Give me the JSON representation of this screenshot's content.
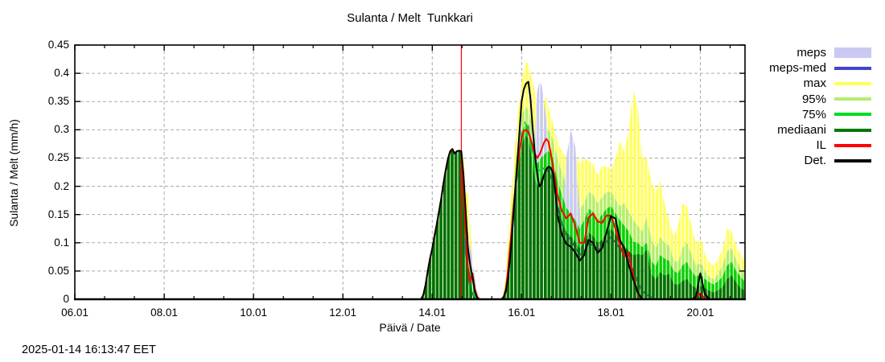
{
  "timestamp": "2025-01-14 16:13:47 EET",
  "chart_data": {
    "type": "area",
    "title": "Sulanta / Melt  Tunkkari",
    "xlabel": "Päivä / Date",
    "ylabel": "Sulanta / Melt (mm/h)",
    "xlim": [
      6,
      21
    ],
    "ylim": [
      0,
      0.45
    ],
    "grid": true,
    "legend_position": "right-outside",
    "now_line": {
      "x": 14.65,
      "color": "#ff0000"
    },
    "xticks": [
      {
        "v": 6,
        "label": "06.01"
      },
      {
        "v": 8,
        "label": "08.01"
      },
      {
        "v": 10,
        "label": "10.01"
      },
      {
        "v": 12,
        "label": "12.01"
      },
      {
        "v": 14,
        "label": "14.01"
      },
      {
        "v": 16,
        "label": "16.01"
      },
      {
        "v": 18,
        "label": "18.01"
      },
      {
        "v": 20,
        "label": "20.01"
      }
    ],
    "yticks": [
      {
        "v": 0,
        "label": "0"
      },
      {
        "v": 0.05,
        "label": "0.05"
      },
      {
        "v": 0.1,
        "label": "0.1"
      },
      {
        "v": 0.15,
        "label": "0.15"
      },
      {
        "v": 0.2,
        "label": "0.2"
      },
      {
        "v": 0.25,
        "label": "0.25"
      },
      {
        "v": 0.3,
        "label": "0.3"
      },
      {
        "v": 0.35,
        "label": "0.35"
      },
      {
        "v": 0.4,
        "label": "0.4"
      },
      {
        "v": 0.45,
        "label": "0.45"
      }
    ],
    "colors": {
      "max": "#ffff60",
      "p95": "#b3ee6e",
      "p75": "#0ad00a",
      "mediaani": "#076e07",
      "meps": "#c9c9f4",
      "meps_med": "#4444cc",
      "il": "#ff0000",
      "det": "#000000",
      "grid": "#a9a9a9",
      "frame": "#000000"
    },
    "legend": [
      {
        "label": "meps",
        "swatch": "fill",
        "color": "#c9c9f4"
      },
      {
        "label": "meps-med",
        "swatch": "line",
        "color": "#4444cc"
      },
      {
        "label": "max",
        "swatch": "line",
        "color": "#ffff55"
      },
      {
        "label": "95%",
        "swatch": "line",
        "color": "#b3ee6e"
      },
      {
        "label": "75%",
        "swatch": "line",
        "color": "#00dd22"
      },
      {
        "label": "mediaani",
        "swatch": "line",
        "color": "#077707"
      },
      {
        "label": "IL",
        "swatch": "line",
        "color": "#ff0000"
      },
      {
        "label": "Det.",
        "swatch": "line",
        "color": "#000000"
      }
    ],
    "series": {
      "x": [
        6,
        13.7,
        13.75,
        13.8,
        13.85,
        13.9,
        13.95,
        14,
        14.05,
        14.1,
        14.15,
        14.2,
        14.25,
        14.3,
        14.35,
        14.4,
        14.45,
        14.5,
        14.55,
        14.6,
        14.65,
        14.7,
        14.75,
        14.8,
        14.85,
        14.9,
        14.95,
        15,
        15.05,
        15.1,
        15.3,
        15.5,
        15.55,
        15.6,
        15.65,
        15.7,
        15.75,
        15.8,
        15.85,
        15.9,
        15.95,
        16,
        16.05,
        16.1,
        16.15,
        16.2,
        16.25,
        16.3,
        16.35,
        16.4,
        16.45,
        16.5,
        16.55,
        16.6,
        16.65,
        16.7,
        16.75,
        16.8,
        16.9,
        17,
        17.1,
        17.2,
        17.3,
        17.4,
        17.5,
        17.6,
        17.7,
        17.8,
        17.9,
        18,
        18.1,
        18.2,
        18.3,
        18.4,
        18.5,
        18.6,
        18.7,
        18.8,
        18.9,
        19,
        19.1,
        19.2,
        19.3,
        19.4,
        19.5,
        19.6,
        19.7,
        19.8,
        19.9,
        19.95,
        20,
        20.05,
        20.1,
        20.2,
        20.3,
        20.4,
        20.5,
        20.6,
        20.7,
        20.8,
        20.9,
        21
      ],
      "max": [
        0,
        0,
        0,
        0.008,
        0.025,
        0.05,
        0.072,
        0.09,
        0.112,
        0.132,
        0.155,
        0.178,
        0.205,
        0.228,
        0.248,
        0.262,
        0.266,
        0.258,
        0.262,
        0.263,
        0.262,
        0.25,
        0.19,
        0.185,
        0.13,
        0.07,
        0.035,
        0.015,
        0.004,
        0,
        0,
        0,
        0,
        0.01,
        0.05,
        0.11,
        0.17,
        0.22,
        0.27,
        0.315,
        0.35,
        0.385,
        0.405,
        0.418,
        0.42,
        0.4,
        0.385,
        0.37,
        0.335,
        0.325,
        0.33,
        0.345,
        0.36,
        0.34,
        0.325,
        0.312,
        0.295,
        0.28,
        0.262,
        0.25,
        0.27,
        0.26,
        0.24,
        0.25,
        0.245,
        0.24,
        0.22,
        0.235,
        0.235,
        0.23,
        0.25,
        0.28,
        0.26,
        0.3,
        0.37,
        0.34,
        0.25,
        0.25,
        0.21,
        0.19,
        0.21,
        0.17,
        0.14,
        0.11,
        0.13,
        0.17,
        0.165,
        0.13,
        0.1,
        0.102,
        0.105,
        0.1,
        0.08,
        0.065,
        0.06,
        0.07,
        0.09,
        0.125,
        0.12,
        0.095,
        0.08,
        0.065
      ],
      "p95": [
        0,
        0,
        0,
        0.008,
        0.025,
        0.05,
        0.072,
        0.09,
        0.112,
        0.132,
        0.155,
        0.178,
        0.205,
        0.228,
        0.248,
        0.262,
        0.266,
        0.258,
        0.262,
        0.263,
        0.262,
        0.235,
        0.17,
        0.12,
        0.075,
        0.045,
        0.02,
        0.008,
        0.002,
        0,
        0,
        0,
        0,
        0.008,
        0.03,
        0.08,
        0.13,
        0.18,
        0.225,
        0.265,
        0.3,
        0.325,
        0.335,
        0.34,
        0.335,
        0.32,
        0.3,
        0.288,
        0.28,
        0.285,
        0.29,
        0.292,
        0.297,
        0.3,
        0.293,
        0.283,
        0.265,
        0.25,
        0.225,
        0.2,
        0.19,
        0.18,
        0.16,
        0.17,
        0.19,
        0.185,
        0.17,
        0.18,
        0.19,
        0.19,
        0.177,
        0.165,
        0.17,
        0.155,
        0.14,
        0.13,
        0.12,
        0.145,
        0.108,
        0.09,
        0.11,
        0.1,
        0.095,
        0.07,
        0.065,
        0.09,
        0.1,
        0.08,
        0.06,
        0.062,
        0.065,
        0.06,
        0.05,
        0.04,
        0.035,
        0.045,
        0.06,
        0.085,
        0.09,
        0.07,
        0.055,
        0.045
      ],
      "meps": [
        0,
        0,
        0,
        0,
        0,
        0,
        0,
        0,
        0,
        0,
        0,
        0,
        0,
        0,
        0,
        0,
        0,
        0,
        0,
        0,
        0,
        0.01,
        0.05,
        0.1,
        0.095,
        0.07,
        0.04,
        0.015,
        0.004,
        0,
        0,
        0,
        0,
        0,
        0,
        0,
        0,
        0,
        0,
        0,
        0,
        0,
        0,
        0,
        0.02,
        0.08,
        0.2,
        0.31,
        0.37,
        0.385,
        0.378,
        0.35,
        0.32,
        0.25,
        0.17,
        0.12,
        0.1,
        0.09,
        0.14,
        0.25,
        0.3,
        0.27,
        0.16,
        0.06,
        0.03,
        0.01,
        0,
        0,
        0,
        0,
        0,
        0,
        0,
        0,
        0,
        0,
        0,
        0,
        0,
        0,
        0,
        0,
        0,
        0,
        0,
        0,
        0,
        0,
        0,
        0,
        0,
        0,
        0,
        0,
        0,
        0,
        0,
        0,
        0,
        0,
        0,
        0
      ],
      "p75": [
        0,
        0,
        0,
        0.008,
        0.025,
        0.05,
        0.072,
        0.09,
        0.112,
        0.132,
        0.155,
        0.178,
        0.205,
        0.228,
        0.248,
        0.262,
        0.266,
        0.258,
        0.262,
        0.263,
        0.262,
        0.21,
        0.14,
        0.085,
        0.05,
        0.028,
        0.012,
        0.004,
        0,
        0,
        0,
        0,
        0,
        0.005,
        0.018,
        0.055,
        0.1,
        0.15,
        0.195,
        0.235,
        0.27,
        0.295,
        0.305,
        0.312,
        0.305,
        0.29,
        0.265,
        0.248,
        0.24,
        0.245,
        0.252,
        0.255,
        0.26,
        0.262,
        0.258,
        0.25,
        0.23,
        0.21,
        0.185,
        0.162,
        0.152,
        0.14,
        0.125,
        0.14,
        0.16,
        0.155,
        0.14,
        0.15,
        0.16,
        0.165,
        0.152,
        0.14,
        0.13,
        0.12,
        0.102,
        0.1,
        0.092,
        0.1,
        0.068,
        0.058,
        0.078,
        0.072,
        0.068,
        0.05,
        0.046,
        0.06,
        0.066,
        0.05,
        0.04,
        0.042,
        0.046,
        0.04,
        0.036,
        0.03,
        0.026,
        0.032,
        0.04,
        0.06,
        0.066,
        0.05,
        0.04,
        0.03
      ],
      "mediaani": [
        0,
        0,
        0,
        0.008,
        0.025,
        0.05,
        0.072,
        0.09,
        0.112,
        0.132,
        0.155,
        0.178,
        0.205,
        0.228,
        0.248,
        0.262,
        0.266,
        0.258,
        0.262,
        0.263,
        0.262,
        0.18,
        0.11,
        0.06,
        0.03,
        0.01,
        0.003,
        0,
        0,
        0,
        0,
        0,
        0,
        0.004,
        0.012,
        0.04,
        0.08,
        0.125,
        0.17,
        0.21,
        0.245,
        0.27,
        0.283,
        0.29,
        0.283,
        0.262,
        0.235,
        0.212,
        0.202,
        0.205,
        0.215,
        0.222,
        0.23,
        0.234,
        0.236,
        0.228,
        0.205,
        0.175,
        0.138,
        0.118,
        0.112,
        0.102,
        0.09,
        0.1,
        0.118,
        0.112,
        0.1,
        0.105,
        0.118,
        0.125,
        0.115,
        0.102,
        0.095,
        0.085,
        0.078,
        0.08,
        0.078,
        0.088,
        0.045,
        0.035,
        0.048,
        0.042,
        0.045,
        0.028,
        0.025,
        0.032,
        0.036,
        0.025,
        0.02,
        0.022,
        0.025,
        0.022,
        0.02,
        0.015,
        0.012,
        0.016,
        0.022,
        0.036,
        0.042,
        0.03,
        0.02,
        0.015
      ],
      "meps_med": [
        0,
        0,
        0,
        0,
        0,
        0,
        0,
        0,
        0,
        0,
        0,
        0,
        0,
        0,
        0,
        0,
        0,
        0,
        0,
        0,
        0,
        0.13,
        0.08,
        0.045,
        0.022,
        0.01,
        0.004,
        0,
        0,
        0,
        0,
        0,
        0,
        0.004,
        0.014,
        0.045,
        0.09,
        0.135,
        0.18,
        0.225,
        0.265,
        0.295,
        0.31,
        0.315,
        0.305,
        0.285,
        0.262,
        0.242,
        0.23,
        0.228,
        0.23,
        0.232,
        0.23,
        0.225,
        0.218,
        0.208,
        0.19,
        0.165,
        0.135,
        0.115,
        0.105,
        0.092,
        0.078,
        0.085,
        0.1,
        0.096,
        0.086,
        0.092,
        0.102,
        0.11,
        0.1,
        0.09,
        0.08,
        0.07,
        0.05,
        0.03,
        0.015,
        0.008,
        0.004,
        0,
        0,
        0,
        0,
        0,
        0,
        0,
        0,
        0,
        0,
        0,
        0,
        0,
        0,
        0,
        0,
        0,
        0,
        0,
        0,
        0,
        0,
        0
      ],
      "il": [
        0,
        0,
        0,
        0.008,
        0.025,
        0.05,
        0.072,
        0.09,
        0.112,
        0.132,
        0.155,
        0.178,
        0.205,
        0.228,
        0.248,
        0.262,
        0.266,
        0.258,
        0.262,
        0.263,
        0.262,
        0.19,
        0.12,
        0.055,
        0.03,
        0.046,
        0.02,
        0.005,
        0,
        0,
        0,
        0,
        0,
        0.005,
        0.02,
        0.055,
        0.1,
        0.145,
        0.19,
        0.23,
        0.262,
        0.285,
        0.298,
        0.3,
        0.295,
        0.285,
        0.27,
        0.257,
        0.25,
        0.256,
        0.266,
        0.277,
        0.284,
        0.279,
        0.26,
        0.235,
        0.21,
        0.185,
        0.157,
        0.143,
        0.152,
        0.13,
        0.1,
        0.1,
        0.145,
        0.152,
        0.138,
        0.135,
        0.148,
        0.148,
        0.125,
        0.095,
        0.075,
        0.083,
        0.04,
        0.01,
        0,
        0,
        0,
        0,
        0,
        0,
        0,
        0,
        0,
        0,
        0,
        0,
        0.003,
        0.008,
        0.01,
        0.006,
        0.002,
        0,
        0,
        0,
        0,
        0,
        0,
        0,
        0,
        0
      ],
      "det": [
        0,
        0,
        0,
        0.008,
        0.025,
        0.05,
        0.072,
        0.09,
        0.112,
        0.132,
        0.155,
        0.178,
        0.205,
        0.228,
        0.248,
        0.262,
        0.266,
        0.258,
        0.262,
        0.263,
        0.262,
        0.22,
        0.155,
        0.09,
        0.06,
        0.04,
        0.015,
        0.003,
        0,
        0,
        0,
        0,
        0,
        0.004,
        0.015,
        0.04,
        0.08,
        0.13,
        0.185,
        0.24,
        0.295,
        0.35,
        0.372,
        0.382,
        0.385,
        0.355,
        0.3,
        0.255,
        0.22,
        0.2,
        0.205,
        0.22,
        0.23,
        0.235,
        0.233,
        0.225,
        0.195,
        0.15,
        0.115,
        0.098,
        0.093,
        0.083,
        0.068,
        0.078,
        0.105,
        0.1,
        0.082,
        0.09,
        0.118,
        0.147,
        0.143,
        0.105,
        0.09,
        0.06,
        0.035,
        0.012,
        0,
        0,
        0,
        0,
        0,
        0,
        0,
        0,
        0,
        0,
        0,
        0,
        0.004,
        0.025,
        0.046,
        0.028,
        0.01,
        0,
        0,
        0,
        0,
        0,
        0,
        0,
        0,
        0
      ]
    }
  }
}
